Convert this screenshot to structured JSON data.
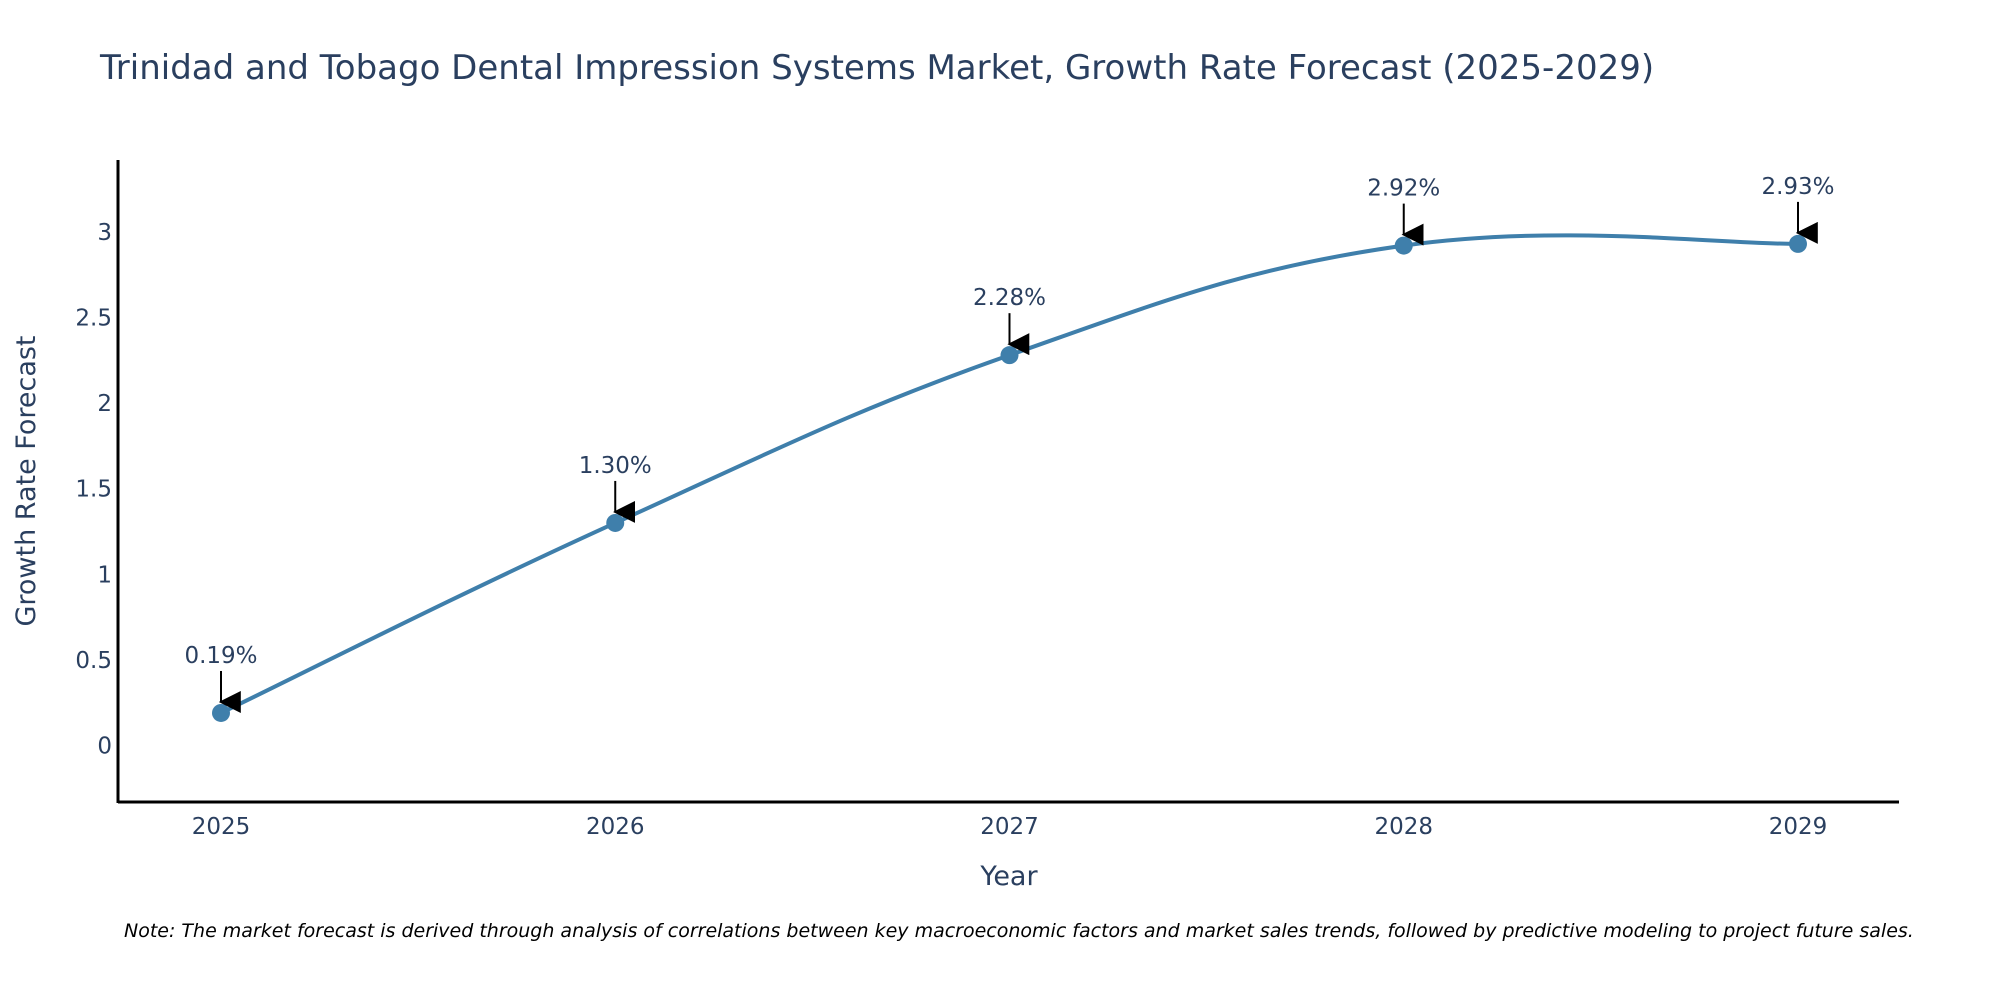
{
  "chart_data": {
    "type": "line",
    "title": "Trinidad and Tobago Dental Impression Systems Market, Growth Rate Forecast (2025-2029)",
    "xlabel": "Year",
    "ylabel": "Growth Rate Forecast",
    "x": [
      "2025",
      "2026",
      "2027",
      "2028",
      "2029"
    ],
    "series": [
      {
        "name": "Growth Rate Forecast",
        "values": [
          0.19,
          1.3,
          2.28,
          2.92,
          2.93
        ],
        "labels": [
          "0.19%",
          "1.30%",
          "2.28%",
          "2.92%",
          "2.93%"
        ]
      }
    ],
    "y_ticks": [
      0,
      0.5,
      1,
      1.5,
      2,
      2.5,
      3
    ],
    "y_tick_labels": [
      "0",
      "0.5",
      "1",
      "1.5",
      "2",
      "2.5",
      "3"
    ],
    "ylim": [
      -0.33,
      3.42
    ],
    "grid": false,
    "line_shape": "spline",
    "line_color": "#3f7fab",
    "marker_color": "#3f7fab",
    "annotation_arrow_color": "#000000"
  },
  "note": "Note: The market forecast is derived through analysis of correlations between key macroeconomic factors and market sales trends, followed by predictive modeling to project future sales."
}
